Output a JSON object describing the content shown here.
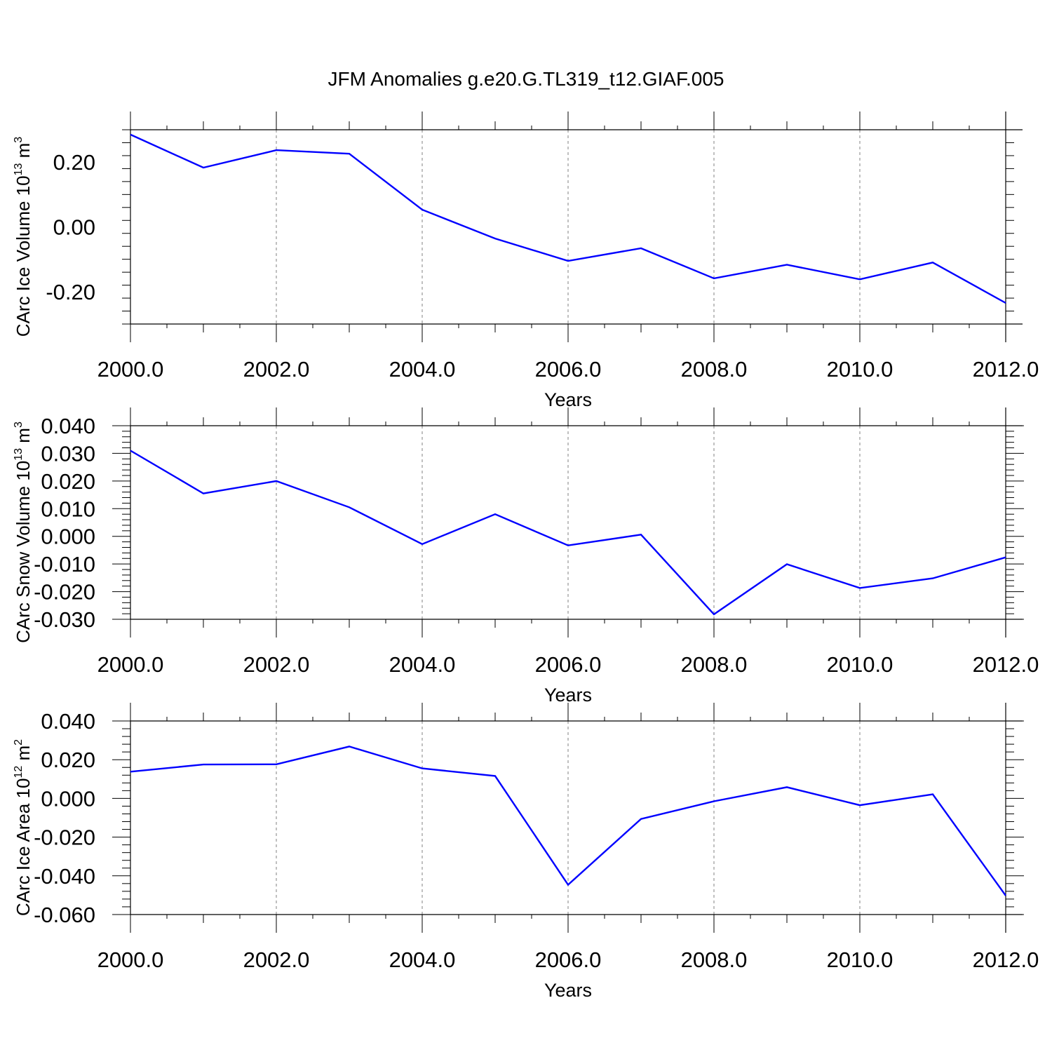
{
  "title": "JFM Anomalies g.e20.G.TL319_t12.GIAF.005",
  "colors": {
    "line": "#0000ff",
    "axis": "#000000",
    "grid": "#808080"
  },
  "chart_data": [
    {
      "type": "line",
      "ylabel": {
        "text": "CArc Ice Volume 10",
        "exp": "13",
        "unit": " m",
        "unit_exp": "3"
      },
      "xlabel": "Years",
      "x": [
        2000,
        2001,
        2002,
        2003,
        2004,
        2005,
        2006,
        2007,
        2008,
        2009,
        2010,
        2011,
        2012
      ],
      "series": [
        {
          "values": [
            0.285,
            0.183,
            0.237,
            0.226,
            0.053,
            -0.036,
            -0.105,
            -0.066,
            -0.159,
            -0.117,
            -0.162,
            -0.11,
            -0.235
          ]
        }
      ],
      "xlim": [
        2000,
        2012
      ],
      "ylim": [
        -0.3,
        0.3
      ],
      "yticks": [
        0.2,
        0.0,
        -0.2
      ],
      "ytick_labels": [
        "0.20",
        "0.00",
        "-0.20"
      ],
      "xticks": [
        2000,
        2002,
        2004,
        2006,
        2008,
        2010,
        2012
      ],
      "xtick_labels": [
        "2000.0",
        "2002.0",
        "2004.0",
        "2006.0",
        "2008.0",
        "2010.0",
        "2012.0"
      ],
      "grid": "vertical dashed"
    },
    {
      "type": "line",
      "ylabel": {
        "text": "CArc Snow Volume 10",
        "exp": "13",
        "unit": " m",
        "unit_exp": "3"
      },
      "xlabel": "Years",
      "x": [
        2000,
        2001,
        2002,
        2003,
        2004,
        2005,
        2006,
        2007,
        2008,
        2009,
        2010,
        2011,
        2012
      ],
      "series": [
        {
          "values": [
            0.031,
            0.0155,
            0.02,
            0.0105,
            -0.0028,
            0.008,
            -0.0033,
            0.0006,
            -0.0282,
            -0.0101,
            -0.0187,
            -0.0152,
            -0.0076
          ]
        }
      ],
      "xlim": [
        2000,
        2012
      ],
      "ylim": [
        -0.03,
        0.04
      ],
      "yticks": [
        0.04,
        0.03,
        0.02,
        0.01,
        0.0,
        -0.01,
        -0.02,
        -0.03
      ],
      "ytick_labels": [
        "0.040",
        "0.030",
        "0.020",
        "0.010",
        "0.000",
        "-0.010",
        "-0.020",
        "-0.030"
      ],
      "xticks": [
        2000,
        2002,
        2004,
        2006,
        2008,
        2010,
        2012
      ],
      "xtick_labels": [
        "2000.0",
        "2002.0",
        "2004.0",
        "2006.0",
        "2008.0",
        "2010.0",
        "2012.0"
      ],
      "grid": "vertical dashed"
    },
    {
      "type": "line",
      "ylabel": {
        "text": "CArc Ice Area 10",
        "exp": "12",
        "unit": " m",
        "unit_exp": "2"
      },
      "xlabel": "Years",
      "x": [
        2000,
        2001,
        2002,
        2003,
        2004,
        2005,
        2006,
        2007,
        2008,
        2009,
        2010,
        2011,
        2012
      ],
      "series": [
        {
          "values": [
            0.0138,
            0.0175,
            0.0176,
            0.0268,
            0.0155,
            0.0116,
            -0.0446,
            -0.0106,
            -0.0015,
            0.0058,
            -0.0035,
            0.0021,
            -0.0502
          ]
        }
      ],
      "xlim": [
        2000,
        2012
      ],
      "ylim": [
        -0.06,
        0.04
      ],
      "yticks": [
        0.04,
        0.02,
        0.0,
        -0.02,
        -0.04,
        -0.06
      ],
      "ytick_labels": [
        "0.040",
        "0.020",
        "0.000",
        "-0.020",
        "-0.040",
        "-0.060"
      ],
      "xticks": [
        2000,
        2002,
        2004,
        2006,
        2008,
        2010,
        2012
      ],
      "xtick_labels": [
        "2000.0",
        "2002.0",
        "2004.0",
        "2006.0",
        "2008.0",
        "2010.0",
        "2012.0"
      ],
      "grid": "vertical dashed"
    }
  ]
}
